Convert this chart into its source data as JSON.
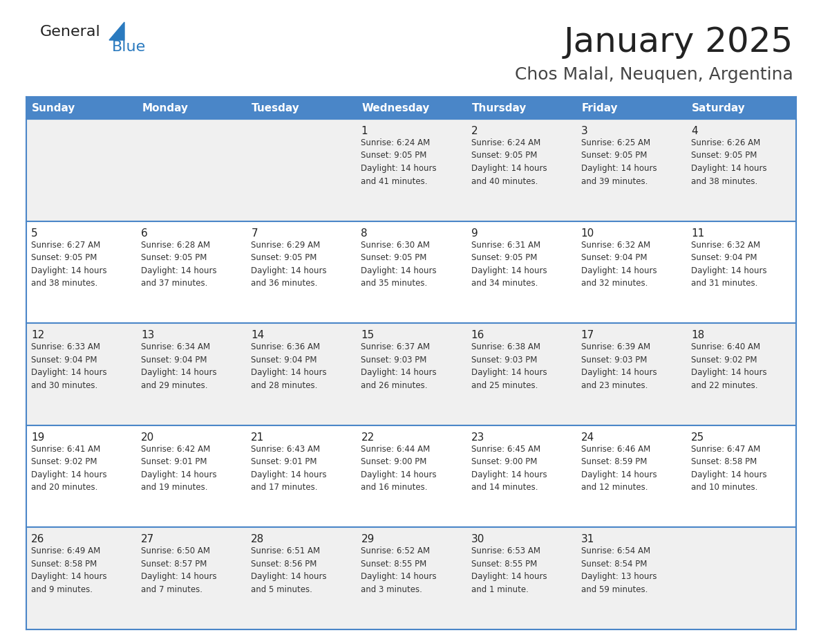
{
  "title": "January 2025",
  "subtitle": "Chos Malal, Neuquen, Argentina",
  "header_bg": "#4a86c8",
  "header_text": "#ffffff",
  "day_names": [
    "Sunday",
    "Monday",
    "Tuesday",
    "Wednesday",
    "Thursday",
    "Friday",
    "Saturday"
  ],
  "row_bg_even": "#f0f0f0",
  "row_bg_odd": "#ffffff",
  "border_color": "#4a86c8",
  "text_color": "#333333",
  "num_color": "#222222",
  "logo_general_color": "#222222",
  "logo_blue_color": "#2a7abf",
  "logo_triangle_color": "#2a7abf",
  "title_color": "#222222",
  "subtitle_color": "#444444",
  "calendar": [
    [
      {
        "day": "",
        "info": ""
      },
      {
        "day": "",
        "info": ""
      },
      {
        "day": "",
        "info": ""
      },
      {
        "day": "1",
        "info": "Sunrise: 6:24 AM\nSunset: 9:05 PM\nDaylight: 14 hours\nand 41 minutes."
      },
      {
        "day": "2",
        "info": "Sunrise: 6:24 AM\nSunset: 9:05 PM\nDaylight: 14 hours\nand 40 minutes."
      },
      {
        "day": "3",
        "info": "Sunrise: 6:25 AM\nSunset: 9:05 PM\nDaylight: 14 hours\nand 39 minutes."
      },
      {
        "day": "4",
        "info": "Sunrise: 6:26 AM\nSunset: 9:05 PM\nDaylight: 14 hours\nand 38 minutes."
      }
    ],
    [
      {
        "day": "5",
        "info": "Sunrise: 6:27 AM\nSunset: 9:05 PM\nDaylight: 14 hours\nand 38 minutes."
      },
      {
        "day": "6",
        "info": "Sunrise: 6:28 AM\nSunset: 9:05 PM\nDaylight: 14 hours\nand 37 minutes."
      },
      {
        "day": "7",
        "info": "Sunrise: 6:29 AM\nSunset: 9:05 PM\nDaylight: 14 hours\nand 36 minutes."
      },
      {
        "day": "8",
        "info": "Sunrise: 6:30 AM\nSunset: 9:05 PM\nDaylight: 14 hours\nand 35 minutes."
      },
      {
        "day": "9",
        "info": "Sunrise: 6:31 AM\nSunset: 9:05 PM\nDaylight: 14 hours\nand 34 minutes."
      },
      {
        "day": "10",
        "info": "Sunrise: 6:32 AM\nSunset: 9:04 PM\nDaylight: 14 hours\nand 32 minutes."
      },
      {
        "day": "11",
        "info": "Sunrise: 6:32 AM\nSunset: 9:04 PM\nDaylight: 14 hours\nand 31 minutes."
      }
    ],
    [
      {
        "day": "12",
        "info": "Sunrise: 6:33 AM\nSunset: 9:04 PM\nDaylight: 14 hours\nand 30 minutes."
      },
      {
        "day": "13",
        "info": "Sunrise: 6:34 AM\nSunset: 9:04 PM\nDaylight: 14 hours\nand 29 minutes."
      },
      {
        "day": "14",
        "info": "Sunrise: 6:36 AM\nSunset: 9:04 PM\nDaylight: 14 hours\nand 28 minutes."
      },
      {
        "day": "15",
        "info": "Sunrise: 6:37 AM\nSunset: 9:03 PM\nDaylight: 14 hours\nand 26 minutes."
      },
      {
        "day": "16",
        "info": "Sunrise: 6:38 AM\nSunset: 9:03 PM\nDaylight: 14 hours\nand 25 minutes."
      },
      {
        "day": "17",
        "info": "Sunrise: 6:39 AM\nSunset: 9:03 PM\nDaylight: 14 hours\nand 23 minutes."
      },
      {
        "day": "18",
        "info": "Sunrise: 6:40 AM\nSunset: 9:02 PM\nDaylight: 14 hours\nand 22 minutes."
      }
    ],
    [
      {
        "day": "19",
        "info": "Sunrise: 6:41 AM\nSunset: 9:02 PM\nDaylight: 14 hours\nand 20 minutes."
      },
      {
        "day": "20",
        "info": "Sunrise: 6:42 AM\nSunset: 9:01 PM\nDaylight: 14 hours\nand 19 minutes."
      },
      {
        "day": "21",
        "info": "Sunrise: 6:43 AM\nSunset: 9:01 PM\nDaylight: 14 hours\nand 17 minutes."
      },
      {
        "day": "22",
        "info": "Sunrise: 6:44 AM\nSunset: 9:00 PM\nDaylight: 14 hours\nand 16 minutes."
      },
      {
        "day": "23",
        "info": "Sunrise: 6:45 AM\nSunset: 9:00 PM\nDaylight: 14 hours\nand 14 minutes."
      },
      {
        "day": "24",
        "info": "Sunrise: 6:46 AM\nSunset: 8:59 PM\nDaylight: 14 hours\nand 12 minutes."
      },
      {
        "day": "25",
        "info": "Sunrise: 6:47 AM\nSunset: 8:58 PM\nDaylight: 14 hours\nand 10 minutes."
      }
    ],
    [
      {
        "day": "26",
        "info": "Sunrise: 6:49 AM\nSunset: 8:58 PM\nDaylight: 14 hours\nand 9 minutes."
      },
      {
        "day": "27",
        "info": "Sunrise: 6:50 AM\nSunset: 8:57 PM\nDaylight: 14 hours\nand 7 minutes."
      },
      {
        "day": "28",
        "info": "Sunrise: 6:51 AM\nSunset: 8:56 PM\nDaylight: 14 hours\nand 5 minutes."
      },
      {
        "day": "29",
        "info": "Sunrise: 6:52 AM\nSunset: 8:55 PM\nDaylight: 14 hours\nand 3 minutes."
      },
      {
        "day": "30",
        "info": "Sunrise: 6:53 AM\nSunset: 8:55 PM\nDaylight: 14 hours\nand 1 minute."
      },
      {
        "day": "31",
        "info": "Sunrise: 6:54 AM\nSunset: 8:54 PM\nDaylight: 13 hours\nand 59 minutes."
      },
      {
        "day": "",
        "info": ""
      }
    ]
  ]
}
